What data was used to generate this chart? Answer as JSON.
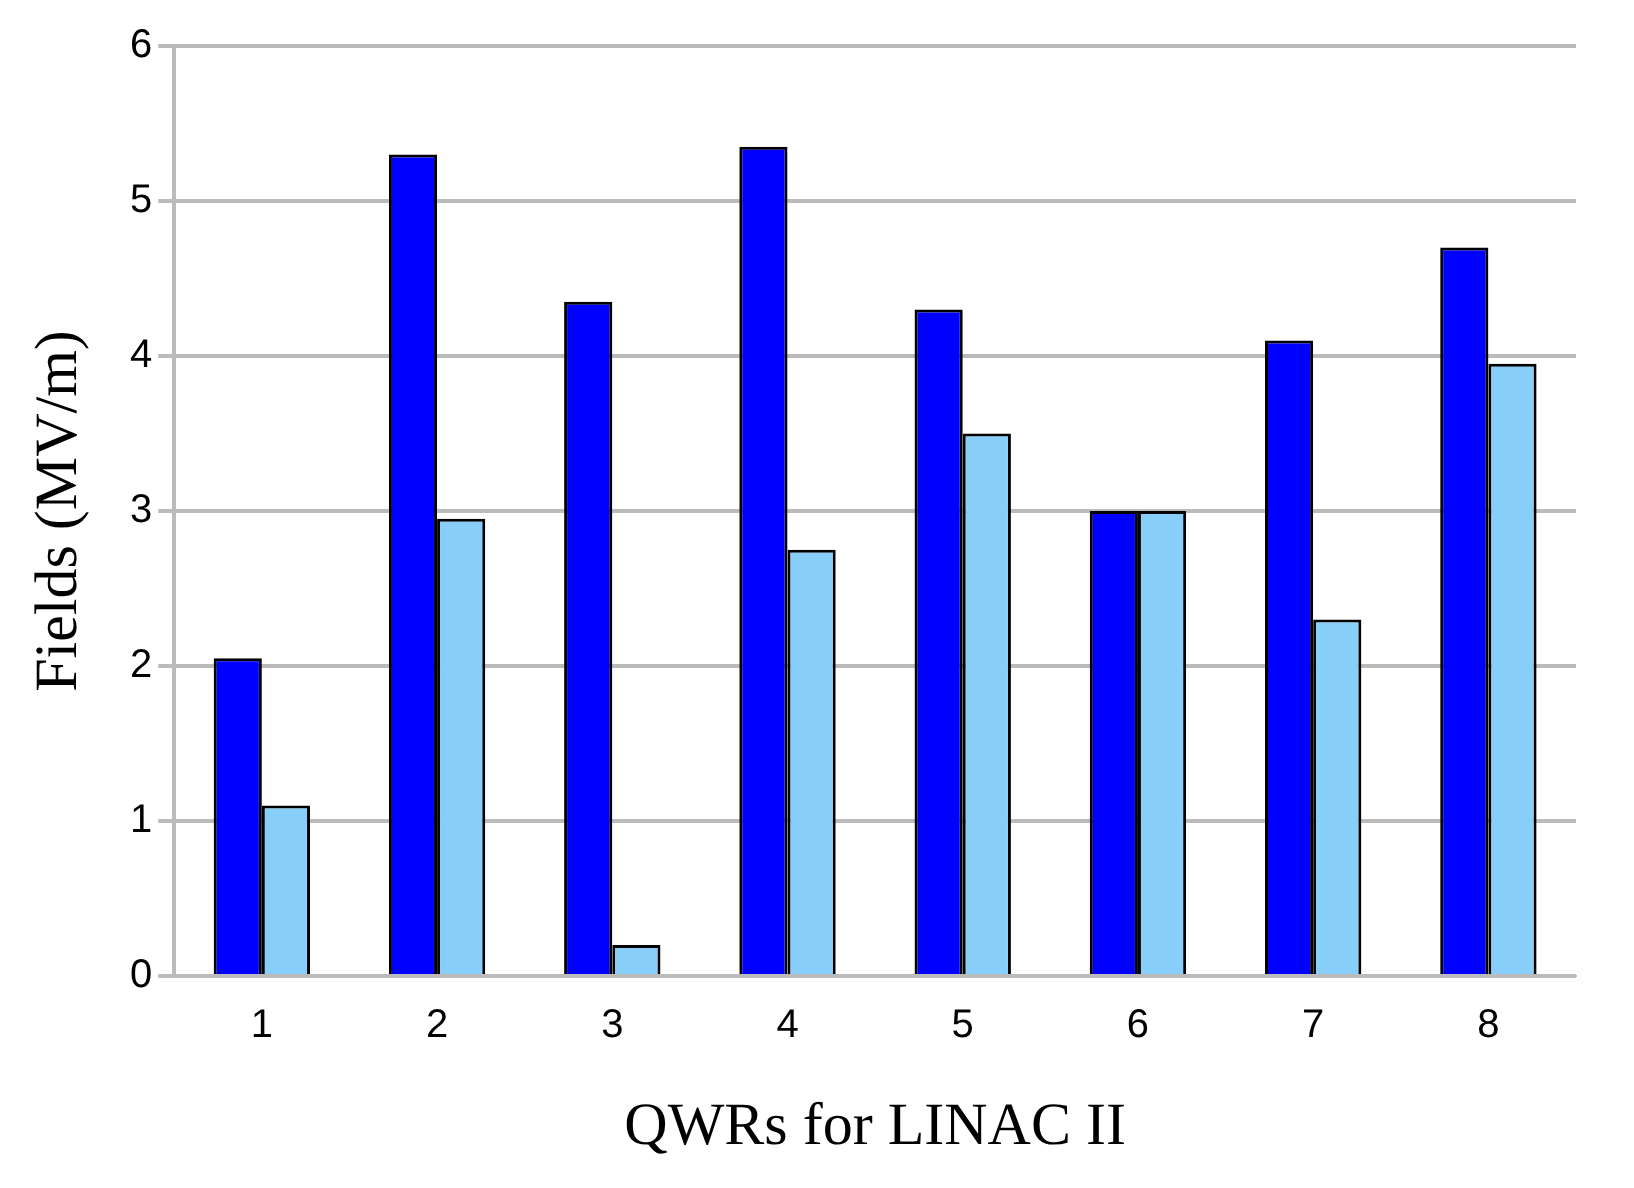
{
  "chart_data": {
    "type": "bar",
    "xlabel": "QWRs for LINAC II",
    "ylabel": "Fields (MV/m)",
    "categories": [
      "1",
      "2",
      "3",
      "4",
      "5",
      "6",
      "7",
      "8"
    ],
    "series": [
      {
        "color": "#0000ff",
        "values": [
          2.05,
          5.3,
          4.35,
          5.35,
          4.3,
          3.0,
          4.1,
          4.7
        ]
      },
      {
        "color": "#87cefa",
        "values": [
          1.1,
          2.95,
          0.2,
          2.75,
          3.5,
          3.0,
          2.3,
          3.95
        ]
      }
    ],
    "ylim": [
      0,
      6
    ],
    "yticks": [
      0,
      1,
      2,
      3,
      4,
      5,
      6
    ],
    "grid": "y"
  }
}
